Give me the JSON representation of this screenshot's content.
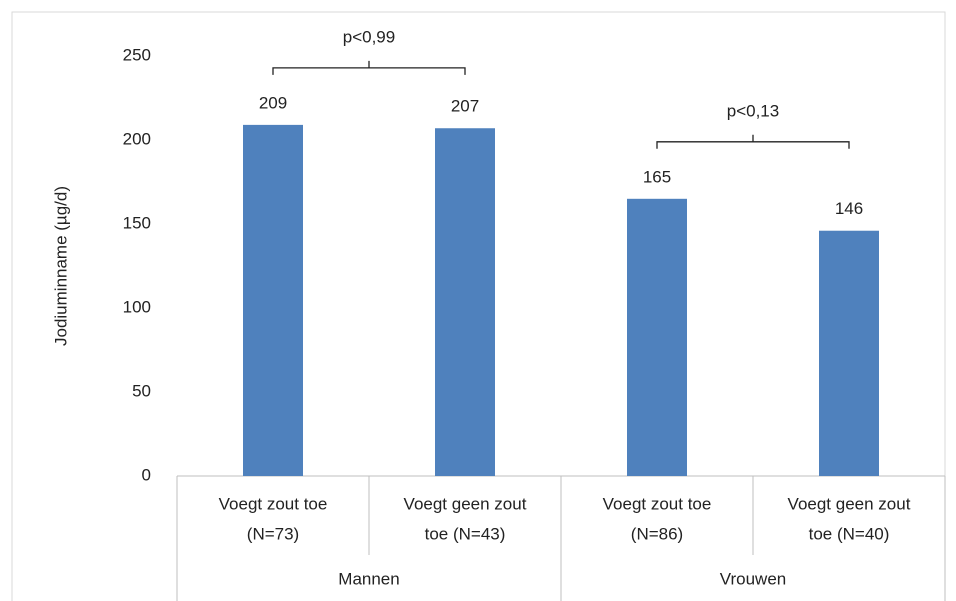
{
  "chart_data": {
    "type": "bar",
    "y_label": "Jodiuminname (µg/d)",
    "categories": [
      [
        "Voegt zout toe",
        "(N=73)"
      ],
      [
        "Voegt geen zout",
        "toe (N=43)"
      ],
      [
        "Voegt zout toe",
        "(N=86)"
      ],
      [
        "Voegt geen zout",
        "toe (N=40)"
      ]
    ],
    "groups": [
      {
        "name": "Mannen",
        "categories": [
          0,
          1
        ]
      },
      {
        "name": "Vrouwen",
        "categories": [
          2,
          3
        ]
      }
    ],
    "values": [
      209,
      207,
      165,
      146
    ],
    "color": "#4f81bd",
    "ylim": [
      0,
      250
    ],
    "yticks": [
      0,
      50,
      100,
      150,
      200,
      250
    ],
    "grid": false,
    "annotations": [
      {
        "text": "p<0,99",
        "categories": [
          0,
          1
        ]
      },
      {
        "text": "p<0,13",
        "categories": [
          2,
          3
        ]
      }
    ]
  }
}
